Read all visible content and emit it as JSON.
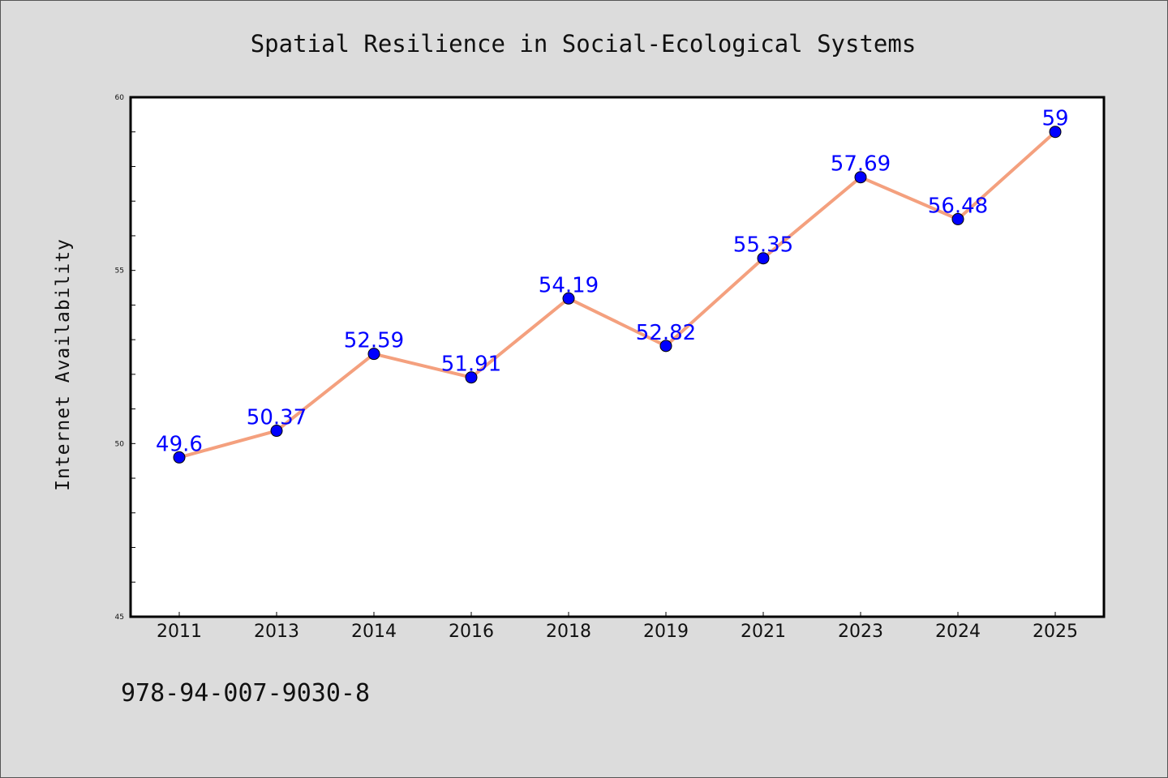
{
  "chart_data": {
    "type": "line",
    "title": "Spatial Resilience in Social-Ecological Systems",
    "xlabel": "",
    "ylabel": "Internet Availability",
    "categories": [
      "2011",
      "2013",
      "2014",
      "2016",
      "2018",
      "2019",
      "2021",
      "2023",
      "2024",
      "2025"
    ],
    "series": [
      {
        "values": [
          49.6,
          50.37,
          52.59,
          51.91,
          54.19,
          52.82,
          55.35,
          57.69,
          56.48,
          59
        ],
        "data_labels": [
          "49.6",
          "50.37",
          "52.59",
          "51.91",
          "54.19",
          "52.82",
          "55.35",
          "57.69",
          "56.48",
          "59"
        ],
        "line_color": "#f4a07e",
        "marker_color": "#0000ff"
      }
    ],
    "ylim": [
      45,
      60
    ],
    "yticks": [
      "45",
      "50",
      "55",
      "60"
    ],
    "grid": false,
    "legend": "none"
  },
  "footnote": "978-94-007-9030-8",
  "colors": {
    "figure_background": "#dcdcdc",
    "plot_background": "#ffffff",
    "line": "#f4a07e",
    "marker": "#0000ff",
    "data_label": "#0000ff"
  }
}
